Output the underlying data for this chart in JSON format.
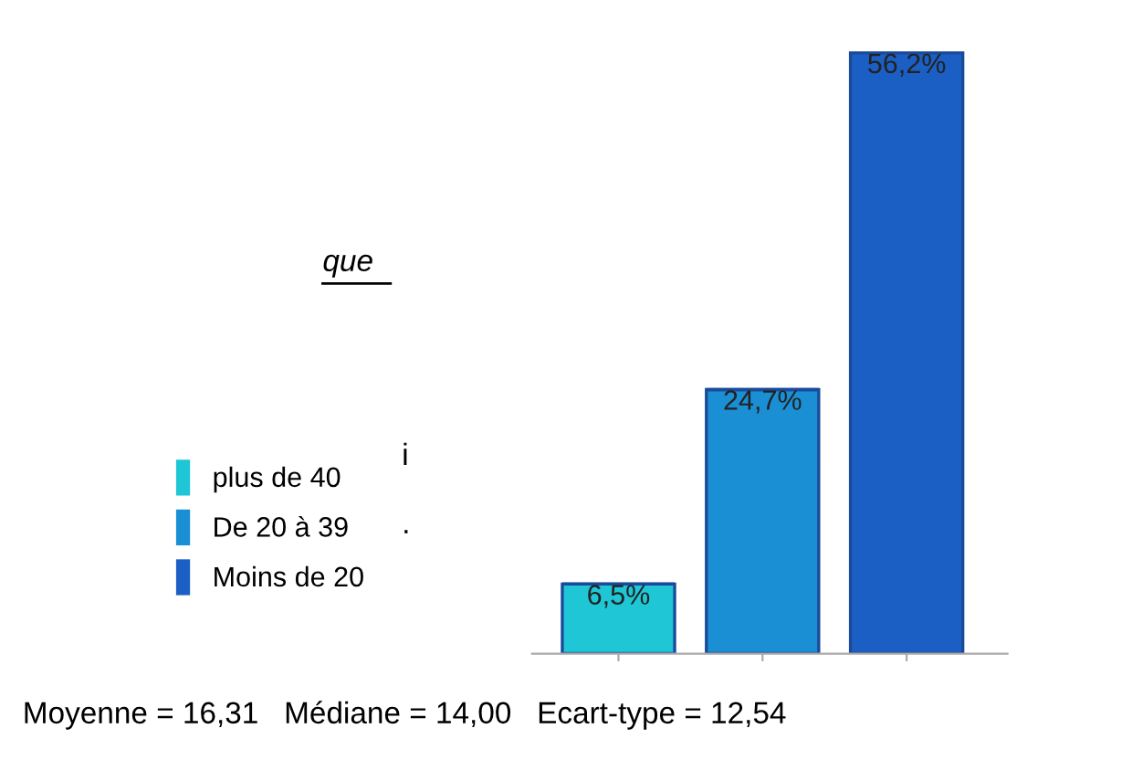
{
  "chart_data": {
    "type": "bar",
    "categories": [
      null,
      null,
      null
    ],
    "series": [
      {
        "name": "plus de 40",
        "color": "#1ec6d6",
        "values": [
          6.5,
          null,
          null
        ],
        "value_labels": [
          "6,5%",
          null,
          null
        ]
      },
      {
        "name": "De 20 à 39",
        "color": "#1a8fd4",
        "values": [
          null,
          24.7,
          null
        ],
        "value_labels": [
          null,
          "24,7%",
          null
        ]
      },
      {
        "name": "Moins de 20",
        "color": "#1c5fc4",
        "values": [
          null,
          null,
          56.2
        ],
        "value_labels": [
          null,
          null,
          "56,2%"
        ]
      }
    ],
    "stacked": true,
    "legend": "left",
    "grid": false,
    "annotations": [
      "que",
      "i",
      ".",
      "Moyenne = 16,31   Médiane = 14,00   Ecart-type = 12,54"
    ]
  }
}
